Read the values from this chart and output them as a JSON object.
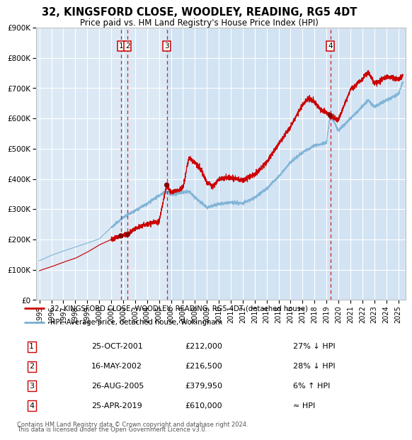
{
  "title": "32, KINGSFORD CLOSE, WOODLEY, READING, RG5 4DT",
  "subtitle": "Price paid vs. HM Land Registry's House Price Index (HPI)",
  "background_color": "#ffffff",
  "plot_bg_color": "#dce9f5",
  "grid_color": "#ffffff",
  "red_line_color": "#cc0000",
  "blue_line_color": "#7ab0d4",
  "sale_dot_color": "#880000",
  "dashed_line_color": "#cc0000",
  "legend_red_label": "32, KINGSFORD CLOSE, WOODLEY, READING, RG5 4DT (detached house)",
  "legend_blue_label": "HPI: Average price, detached house, Wokingham",
  "footer_line1": "Contains HM Land Registry data © Crown copyright and database right 2024.",
  "footer_line2": "This data is licensed under the Open Government Licence v3.0.",
  "ylim": [
    0,
    900000
  ],
  "yticks": [
    0,
    100000,
    200000,
    300000,
    400000,
    500000,
    600000,
    700000,
    800000,
    900000
  ],
  "ytick_labels": [
    "£0",
    "£100K",
    "£200K",
    "£300K",
    "£400K",
    "£500K",
    "£600K",
    "£700K",
    "£800K",
    "£900K"
  ],
  "xlim_start": 1994.7,
  "xlim_end": 2025.6,
  "xticks": [
    1995,
    1996,
    1997,
    1998,
    1999,
    2000,
    2001,
    2002,
    2003,
    2004,
    2005,
    2006,
    2007,
    2008,
    2009,
    2010,
    2011,
    2012,
    2013,
    2014,
    2015,
    2016,
    2017,
    2018,
    2019,
    2020,
    2021,
    2022,
    2023,
    2024,
    2025
  ],
  "sales": [
    {
      "num": 1,
      "date": "25-OCT-2001",
      "year": 2001.81,
      "price": 212000,
      "hpi_rel": "27% ↓ HPI"
    },
    {
      "num": 2,
      "date": "16-MAY-2002",
      "year": 2002.37,
      "price": 216500,
      "hpi_rel": "28% ↓ HPI"
    },
    {
      "num": 3,
      "date": "26-AUG-2005",
      "year": 2005.65,
      "price": 379950,
      "hpi_rel": "6% ↑ HPI"
    },
    {
      "num": 4,
      "date": "25-APR-2019",
      "year": 2019.32,
      "price": 610000,
      "hpi_rel": "≈ HPI"
    }
  ],
  "shade_start": 2005.65,
  "hpi_anchors_x": [
    1995.0,
    1996.0,
    1997.0,
    1998.0,
    1999.0,
    2000.0,
    2001.0,
    2002.0,
    2003.0,
    2004.0,
    2005.0,
    2005.65,
    2006.0,
    2007.0,
    2007.5,
    2008.0,
    2009.0,
    2010.0,
    2011.0,
    2012.0,
    2013.0,
    2014.0,
    2015.0,
    2016.0,
    2017.0,
    2018.0,
    2019.0,
    2019.32,
    2020.0,
    2021.0,
    2022.0,
    2022.5,
    2023.0,
    2024.0,
    2025.0,
    2025.4
  ],
  "hpi_anchors_y": [
    130000,
    148000,
    162000,
    175000,
    188000,
    202000,
    240000,
    272000,
    295000,
    318000,
    345000,
    358000,
    348000,
    355000,
    358000,
    340000,
    305000,
    318000,
    322000,
    320000,
    338000,
    368000,
    408000,
    455000,
    488000,
    510000,
    520000,
    613000,
    560000,
    600000,
    640000,
    660000,
    638000,
    660000,
    680000,
    720000
  ],
  "red_anchors_x": [
    1995.0,
    1996.0,
    1997.0,
    1998.0,
    1999.0,
    2000.0,
    2001.0,
    2001.81,
    2002.0,
    2002.37,
    2003.0,
    2004.0,
    2005.0,
    2005.65,
    2006.0,
    2007.0,
    2007.5,
    2008.0,
    2008.5,
    2009.0,
    2009.5,
    2010.0,
    2011.0,
    2012.0,
    2013.0,
    2014.0,
    2015.0,
    2016.0,
    2017.0,
    2017.5,
    2018.0,
    2018.5,
    2019.0,
    2019.32,
    2020.0,
    2021.0,
    2022.0,
    2022.5,
    2023.0,
    2023.5,
    2024.0,
    2025.0,
    2025.4
  ],
  "red_anchors_y": [
    97000,
    110000,
    125000,
    138000,
    158000,
    182000,
    200000,
    212000,
    215000,
    216500,
    235000,
    252000,
    260000,
    379950,
    355000,
    370000,
    470000,
    455000,
    430000,
    390000,
    375000,
    400000,
    405000,
    395000,
    415000,
    455000,
    515000,
    572000,
    645000,
    668000,
    655000,
    630000,
    620000,
    610000,
    595000,
    695000,
    730000,
    755000,
    715000,
    725000,
    738000,
    730000,
    740000
  ]
}
